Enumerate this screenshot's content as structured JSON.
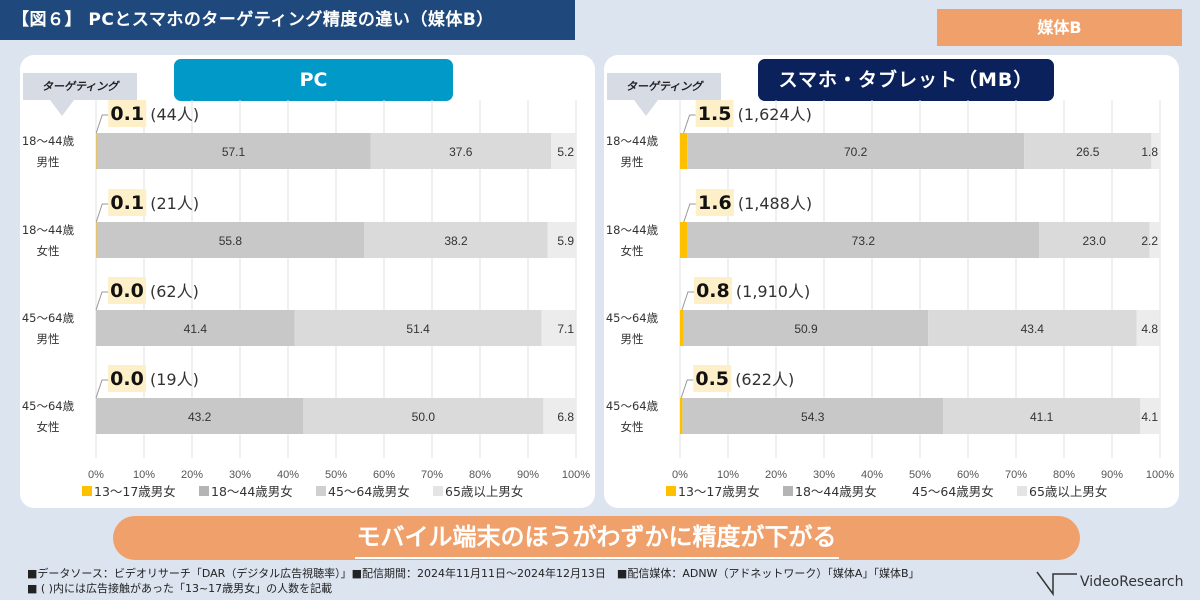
{
  "header": {
    "title": "【図６】 PCとスマホのターゲティング精度の違い（媒体B）",
    "media_badge": "媒体B"
  },
  "colors": {
    "title_bg": "#1f497d",
    "badge_bg": "#f0a06a",
    "pc_header_bg": "#0099c8",
    "mb_header_bg": "#0a215c",
    "highlight_bg": "#fdf0c8"
  },
  "chart_data": [
    {
      "type": "bar",
      "orientation": "horizontal-stacked-100",
      "title": "PC",
      "corner_label": "ターゲティング",
      "categories": [
        "18～44歳\n男性",
        "18～44歳\n女性",
        "45～64歳\n男性",
        "45～64歳\n女性"
      ],
      "category_lines": [
        [
          "18～44歳",
          "男性"
        ],
        [
          "18～44歳",
          "女性"
        ],
        [
          "45～64歳",
          "男性"
        ],
        [
          "45～64歳",
          "女性"
        ]
      ],
      "series": [
        {
          "name": "13～17歳男女",
          "color": "#ffc000",
          "values": [
            0.1,
            0.1,
            0.0,
            0.0
          ]
        },
        {
          "name": "18～44歳男女",
          "color": "#c8c8c8",
          "values": [
            57.1,
            55.8,
            41.4,
            43.2
          ]
        },
        {
          "name": "45～64歳男女",
          "color": "#dadada",
          "values": [
            37.6,
            38.2,
            51.4,
            50.0
          ]
        },
        {
          "name": "65歳以上男女",
          "color": "#ececec",
          "values": [
            5.2,
            5.9,
            7.1,
            6.8
          ]
        }
      ],
      "callouts": [
        {
          "value": "0.1",
          "count": "(44人)"
        },
        {
          "value": "0.1",
          "count": "(21人)"
        },
        {
          "value": "0.0",
          "count": "(62人)"
        },
        {
          "value": "0.0",
          "count": "(19人)"
        }
      ],
      "xticks": [
        "0%",
        "10%",
        "20%",
        "30%",
        "40%",
        "50%",
        "60%",
        "70%",
        "80%",
        "90%",
        "100%"
      ],
      "xlim": [
        0,
        100
      ],
      "grid": true,
      "legend": "bottom"
    },
    {
      "type": "bar",
      "orientation": "horizontal-stacked-100",
      "title": "スマホ・タブレット（MB）",
      "corner_label": "ターゲティング",
      "categories": [
        "18～44歳\n男性",
        "18～44歳\n女性",
        "45～64歳\n男性",
        "45～64歳\n女性"
      ],
      "category_lines": [
        [
          "18～44歳",
          "男性"
        ],
        [
          "18～44歳",
          "女性"
        ],
        [
          "45～64歳",
          "男性"
        ],
        [
          "45～64歳",
          "女性"
        ]
      ],
      "series": [
        {
          "name": "13～17歳男女",
          "color": "#ffc000",
          "values": [
            1.5,
            1.6,
            0.8,
            0.5
          ]
        },
        {
          "name": "18～44歳男女",
          "color": "#c8c8c8",
          "values": [
            70.2,
            73.2,
            50.9,
            54.3
          ]
        },
        {
          "name": "45～64歳男女",
          "color": "#dadada",
          "values": [
            26.5,
            23.0,
            43.4,
            41.1
          ]
        },
        {
          "name": "65歳以上男女",
          "color": "#ececec",
          "values": [
            1.8,
            2.2,
            4.8,
            4.1
          ]
        }
      ],
      "callouts": [
        {
          "value": "1.5",
          "count": "(1,624人)"
        },
        {
          "value": "1.6",
          "count": "(1,488人)"
        },
        {
          "value": "0.8",
          "count": "(1,910人)"
        },
        {
          "value": "0.5",
          "count": "(622人)"
        }
      ],
      "xticks": [
        "0%",
        "10%",
        "20%",
        "30%",
        "40%",
        "50%",
        "60%",
        "70%",
        "80%",
        "90%",
        "100%"
      ],
      "xlim": [
        0,
        100
      ],
      "grid": true,
      "legend": "bottom",
      "legend_hidden_swatches": [
        "45～64歳男女"
      ]
    }
  ],
  "conclusion": "モバイル端末のほうがわずかに精度が下がる",
  "notes": [
    "■データソース：ビデオリサーチ「DAR（デジタル広告視聴率）」■配信期間：2024年11月11日～2024年12月13日　■配信媒体：ADNW（アドネットワーク）「媒体A」「媒体B」",
    "■ ( )内には広告接触があった「13~17歳男女」の人数を記載"
  ],
  "logo_text": "VideoResearch"
}
